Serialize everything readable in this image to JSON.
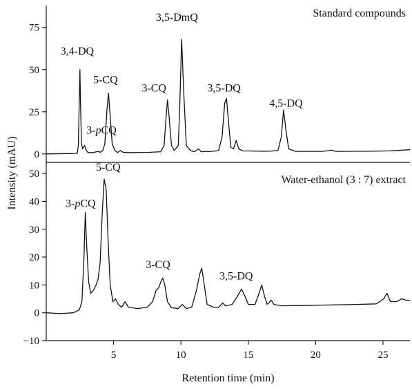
{
  "chart_data": [
    {
      "type": "line",
      "panel": "top",
      "title": "Standard compounds",
      "xlim": [
        0,
        27
      ],
      "ylim": [
        -5,
        88
      ],
      "yticks": [
        0,
        25,
        50,
        75
      ],
      "xlabel": "Retention time (min)",
      "ylabel": "Intensity (mAU)",
      "series": [
        {
          "points": [
            [
              0,
              0
            ],
            [
              1.5,
              0.2
            ],
            [
              2.3,
              0.3
            ],
            [
              2.38,
              5
            ],
            [
              2.45,
              30
            ],
            [
              2.5,
              50
            ],
            [
              2.55,
              28
            ],
            [
              2.62,
              6
            ],
            [
              2.7,
              3
            ],
            [
              2.85,
              5
            ],
            [
              2.95,
              2.5
            ],
            [
              3.1,
              0.8
            ],
            [
              3.5,
              0.8
            ],
            [
              3.85,
              1.5
            ],
            [
              4.0,
              1.0
            ],
            [
              4.2,
              2
            ],
            [
              4.35,
              6
            ],
            [
              4.5,
              25
            ],
            [
              4.62,
              36
            ],
            [
              4.75,
              22
            ],
            [
              4.9,
              6
            ],
            [
              5.1,
              2
            ],
            [
              5.3,
              0.8
            ],
            [
              5.5,
              2
            ],
            [
              5.7,
              1
            ],
            [
              6.2,
              0.8
            ],
            [
              7.5,
              0.9
            ],
            [
              8.5,
              1.3
            ],
            [
              8.75,
              5
            ],
            [
              8.9,
              22
            ],
            [
              9.0,
              32
            ],
            [
              9.1,
              24
            ],
            [
              9.3,
              5
            ],
            [
              9.5,
              2
            ],
            [
              9.8,
              5
            ],
            [
              9.92,
              30
            ],
            [
              10.05,
              68
            ],
            [
              10.2,
              38
            ],
            [
              10.4,
              5
            ],
            [
              10.7,
              2
            ],
            [
              11.0,
              1.3
            ],
            [
              11.3,
              3
            ],
            [
              11.5,
              1.3
            ],
            [
              12.3,
              1.5
            ],
            [
              12.8,
              2
            ],
            [
              13.05,
              10
            ],
            [
              13.25,
              30
            ],
            [
              13.38,
              33
            ],
            [
              13.5,
              22
            ],
            [
              13.7,
              4
            ],
            [
              13.9,
              3
            ],
            [
              14.1,
              8
            ],
            [
              14.3,
              3
            ],
            [
              14.6,
              1.8
            ],
            [
              16.5,
              1.6
            ],
            [
              17.2,
              2
            ],
            [
              17.45,
              10
            ],
            [
              17.62,
              26
            ],
            [
              17.8,
              14
            ],
            [
              18.0,
              3
            ],
            [
              18.5,
              1.5
            ],
            [
              20.5,
              1.5
            ],
            [
              21.2,
              2.2
            ],
            [
              21.5,
              1.5
            ],
            [
              24,
              1.6
            ],
            [
              25.5,
              1.8
            ],
            [
              27,
              2.5
            ]
          ]
        }
      ],
      "annotations": [
        {
          "text": "3,4-DQ",
          "x": 2.3,
          "y": 59
        },
        {
          "text": "5-CQ",
          "x": 4.4,
          "y": 42
        },
        {
          "text_prefix": "3-",
          "text_italic": "p",
          "text_suffix": "CQ",
          "x": 4.1,
          "y": 12
        },
        {
          "text": "3-CQ",
          "x": 8.0,
          "y": 37
        },
        {
          "text": "3,5-DmQ",
          "x": 9.7,
          "y": 79
        },
        {
          "text": "3,5-DQ",
          "x": 13.2,
          "y": 37
        },
        {
          "text": "4,5-DQ",
          "x": 17.8,
          "y": 28
        }
      ]
    },
    {
      "type": "line",
      "panel": "bottom",
      "title": "Water-ethanol (3 : 7) extract",
      "xlim": [
        0,
        27
      ],
      "ylim": [
        -10,
        54
      ],
      "yticks": [
        -10,
        0,
        10,
        20,
        30,
        40,
        50
      ],
      "xticks": [
        5,
        10,
        15,
        20,
        25
      ],
      "xlabel": "Retention time (min)",
      "ylabel": "Intensity (mAU)",
      "series": [
        {
          "points": [
            [
              0,
              0
            ],
            [
              1.0,
              -0.3
            ],
            [
              2.0,
              0
            ],
            [
              2.45,
              1
            ],
            [
              2.65,
              4
            ],
            [
              2.8,
              20
            ],
            [
              2.9,
              36
            ],
            [
              3.0,
              24
            ],
            [
              3.15,
              11
            ],
            [
              3.3,
              7
            ],
            [
              3.5,
              8
            ],
            [
              3.7,
              10
            ],
            [
              3.85,
              12
            ],
            [
              4.0,
              18
            ],
            [
              4.15,
              35
            ],
            [
              4.3,
              48
            ],
            [
              4.45,
              44
            ],
            [
              4.6,
              25
            ],
            [
              4.75,
              10
            ],
            [
              4.95,
              4
            ],
            [
              5.15,
              5
            ],
            [
              5.35,
              3
            ],
            [
              5.6,
              2
            ],
            [
              5.85,
              4
            ],
            [
              6.1,
              2
            ],
            [
              6.8,
              1.5
            ],
            [
              7.5,
              2
            ],
            [
              7.9,
              4
            ],
            [
              8.15,
              8
            ],
            [
              8.35,
              9
            ],
            [
              8.5,
              11
            ],
            [
              8.65,
              12.5
            ],
            [
              8.8,
              10
            ],
            [
              9.0,
              4
            ],
            [
              9.3,
              1.8
            ],
            [
              9.8,
              1.5
            ],
            [
              10.1,
              3
            ],
            [
              10.4,
              1.5
            ],
            [
              10.8,
              2
            ],
            [
              11.15,
              8
            ],
            [
              11.4,
              14
            ],
            [
              11.55,
              16
            ],
            [
              11.7,
              11
            ],
            [
              11.95,
              3
            ],
            [
              12.4,
              2
            ],
            [
              12.8,
              2
            ],
            [
              13.1,
              3.5
            ],
            [
              13.3,
              2.5
            ],
            [
              13.8,
              3
            ],
            [
              14.2,
              6
            ],
            [
              14.5,
              8.5
            ],
            [
              14.75,
              6
            ],
            [
              15.0,
              3
            ],
            [
              15.5,
              3
            ],
            [
              15.8,
              7
            ],
            [
              16.0,
              10
            ],
            [
              16.2,
              6
            ],
            [
              16.4,
              3
            ],
            [
              16.7,
              4.5
            ],
            [
              16.9,
              3
            ],
            [
              17.5,
              2.5
            ],
            [
              19,
              2.6
            ],
            [
              21,
              2.8
            ],
            [
              23,
              3
            ],
            [
              24.5,
              3.2
            ],
            [
              25.05,
              5
            ],
            [
              25.3,
              7
            ],
            [
              25.55,
              4
            ],
            [
              26,
              4
            ],
            [
              26.4,
              5
            ],
            [
              26.7,
              4.5
            ],
            [
              27,
              4.5
            ]
          ]
        }
      ],
      "annotations": [
        {
          "text_prefix": "3-",
          "text_italic": "p",
          "text_suffix": "CQ",
          "x": 2.55,
          "y": 38
        },
        {
          "text": "5-CQ",
          "x": 4.6,
          "y": 51
        },
        {
          "text": "3-CQ",
          "x": 8.3,
          "y": 16
        },
        {
          "text": "3,5-DQ",
          "x": 14.1,
          "y": 12
        }
      ]
    }
  ]
}
